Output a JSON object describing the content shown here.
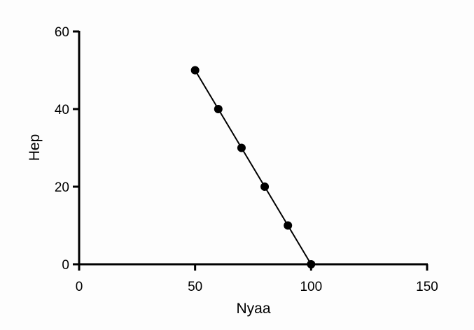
{
  "chart_data": {
    "type": "line",
    "title": "",
    "xlabel": "Nyaa",
    "ylabel": "Hep",
    "xlim": [
      0,
      150
    ],
    "ylim": [
      0,
      60
    ],
    "x_ticks": [
      0,
      50,
      100,
      150
    ],
    "y_ticks": [
      0,
      20,
      40,
      60
    ],
    "grid": false,
    "legend": "none",
    "series": [
      {
        "x": [
          50,
          60,
          70,
          80,
          90,
          100
        ],
        "y": [
          50,
          40,
          30,
          20,
          10,
          0
        ],
        "marker": "circle",
        "color": "#000000"
      }
    ]
  }
}
